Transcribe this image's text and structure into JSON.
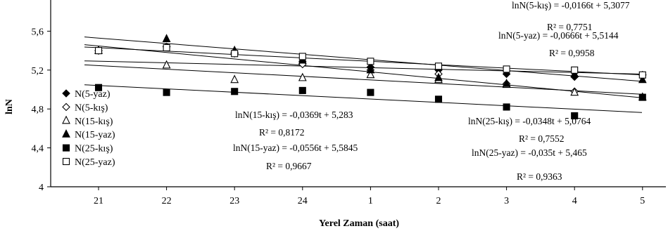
{
  "chart_data": {
    "type": "scatter",
    "xlabel": "Yerel Zaman (saat)",
    "ylabel": "lnN",
    "categories": [
      "21",
      "22",
      "23",
      "24",
      "1",
      "2",
      "3",
      "4",
      "5"
    ],
    "yticks": [
      "4",
      "4,4",
      "4,8",
      "5,2",
      "5,6"
    ],
    "ylim": [
      4,
      5.8
    ],
    "grid": false,
    "legend_position": "left",
    "series": [
      {
        "name": "N(5-yaz)",
        "marker": "diamond-filled",
        "values": [
          5.4,
          5.44,
          5.37,
          5.29,
          5.23,
          5.2,
          5.16,
          5.13,
          5.15
        ]
      },
      {
        "name": "N(5-kış)",
        "marker": "diamond-open",
        "values": [
          5.4,
          5.44,
          5.38,
          5.26,
          5.2,
          5.16,
          5.06,
          4.98,
          5.15
        ]
      },
      {
        "name": "N(15-kış)",
        "marker": "triangle-open",
        "values": [
          5.4,
          5.25,
          5.1,
          5.12,
          5.15,
          5.1,
          5.05,
          4.97,
          4.92
        ]
      },
      {
        "name": "N(15-yaz)",
        "marker": "triangle-filled",
        "values": [
          5.4,
          5.52,
          5.4,
          5.3,
          5.2,
          5.12,
          5.06,
          5.16,
          5.1
        ]
      },
      {
        "name": "N(25-kış)",
        "marker": "square-filled",
        "values": [
          5.02,
          4.97,
          4.98,
          4.99,
          4.97,
          4.9,
          4.82,
          4.73,
          4.92
        ]
      },
      {
        "name": "N(25-yaz)",
        "marker": "square-open",
        "values": [
          5.4,
          5.43,
          5.37,
          5.34,
          5.29,
          5.24,
          5.21,
          5.2,
          5.15
        ]
      }
    ],
    "trendlines": [
      {
        "equation": "lnN(5-kış) = -0,0166t + 5,3077",
        "r2": "R² = 0,7751",
        "slope": -0.0166,
        "intercept": 5.3077
      },
      {
        "equation": "lnN(5-yaz) = -0,0666t + 5,5144",
        "r2": "R² = 0,9958",
        "slope": -0.0666,
        "intercept": 5.5144
      },
      {
        "equation": "lnN(15-kış) = -0,0369t + 5,283",
        "r2": "R² = 0,8172",
        "slope": -0.0369,
        "intercept": 5.283
      },
      {
        "equation": "lnN(15-yaz) = -0,0556t + 5,5845",
        "r2": "R² = 0,9667",
        "slope": -0.0556,
        "intercept": 5.5845
      },
      {
        "equation": "lnN(25-kış) = -0,0348t + 5,0764",
        "r2": "R² = 0,7552",
        "slope": -0.0348,
        "intercept": 5.0764
      },
      {
        "equation": "lnN(25-yaz) = -0,035t + 5,465",
        "r2": "R² = 0,9363",
        "slope": -0.035,
        "intercept": 5.465
      }
    ]
  }
}
